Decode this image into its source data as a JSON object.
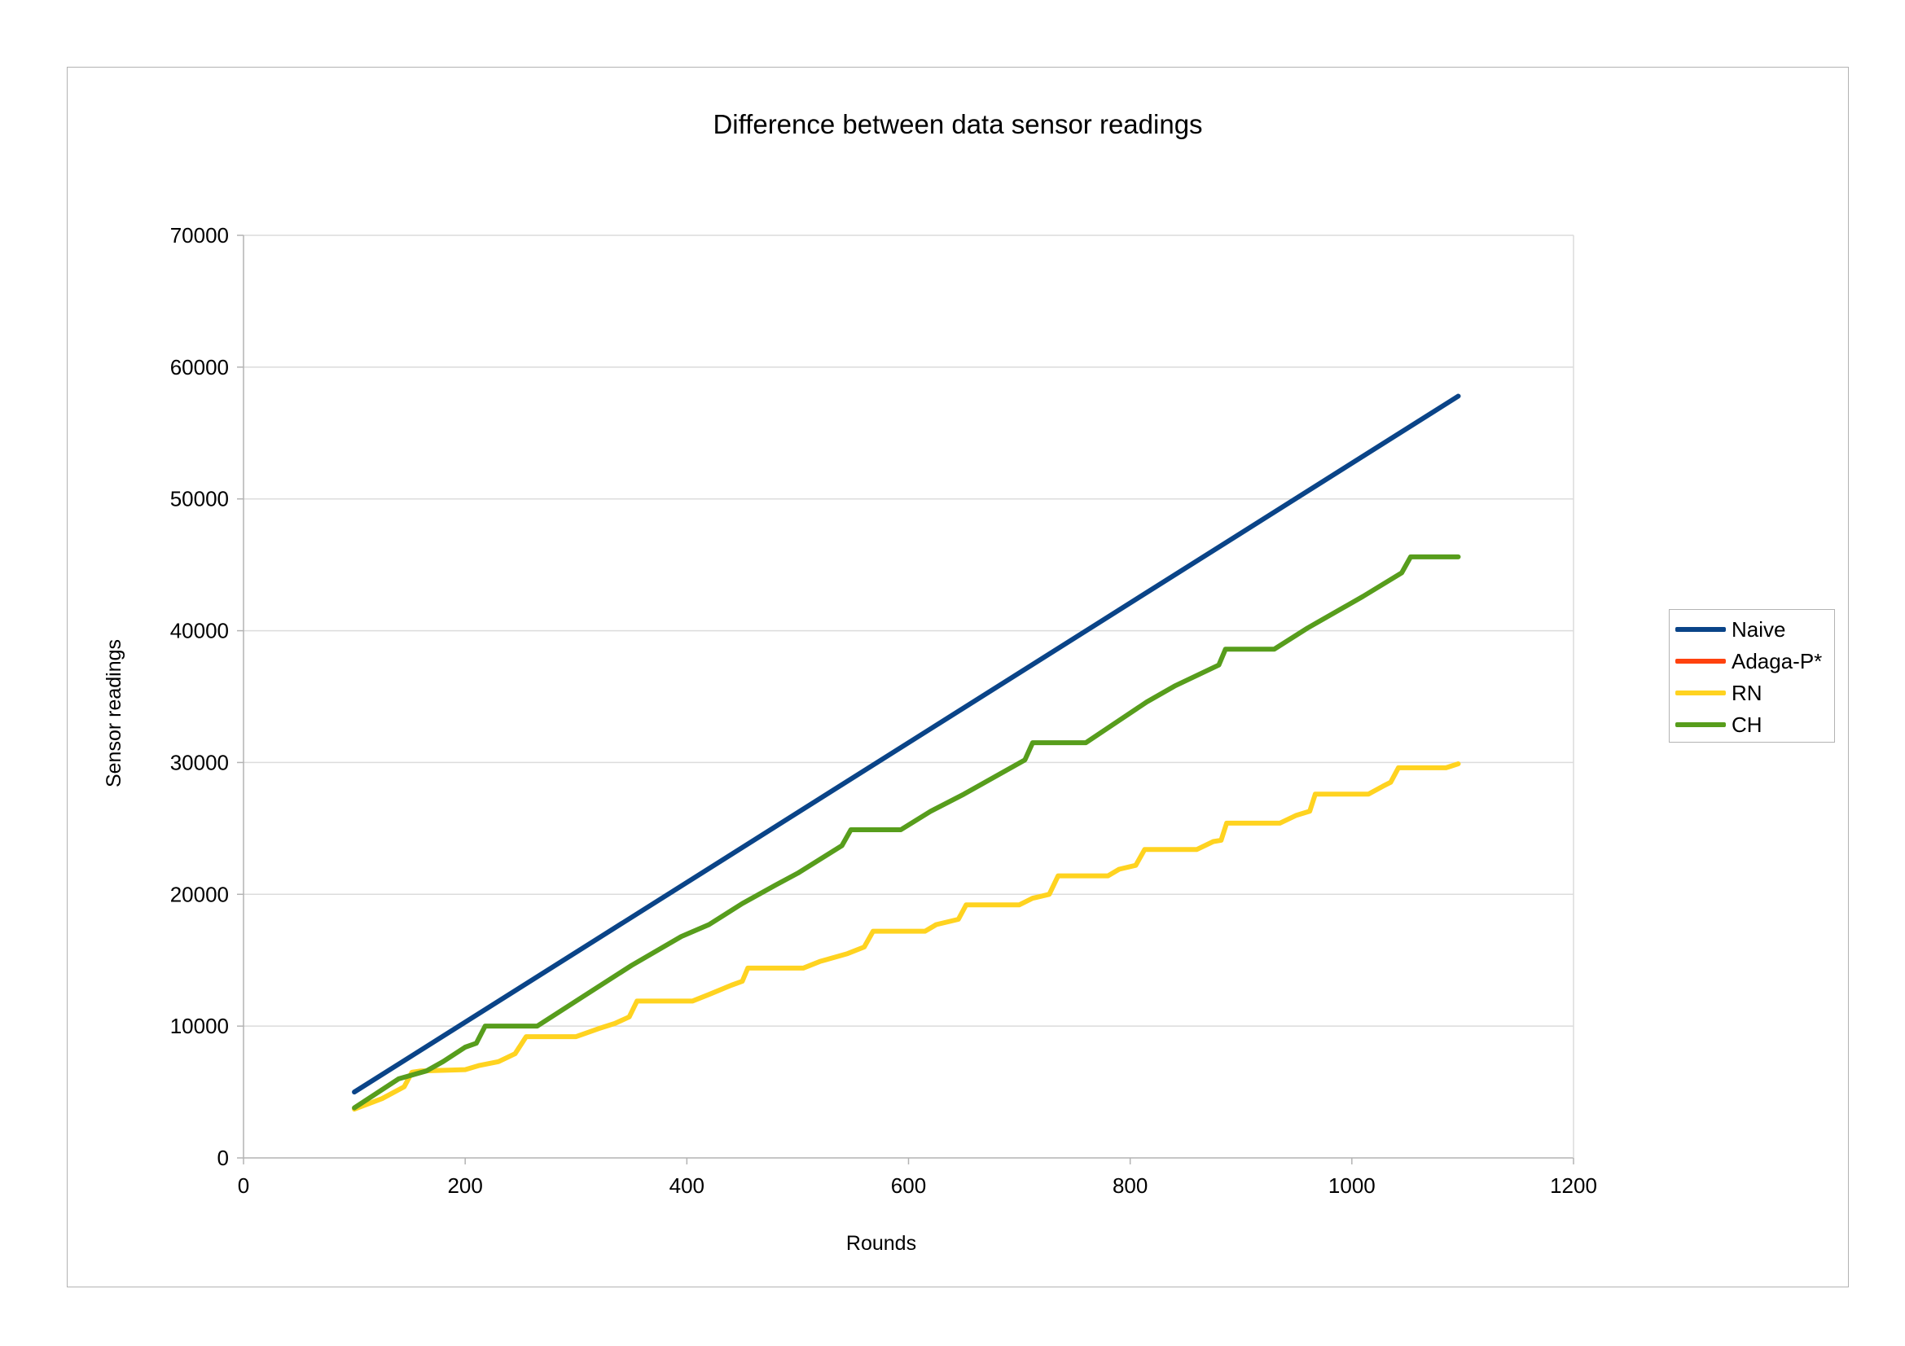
{
  "chart_data": {
    "type": "line",
    "title": "Difference between data sensor readings",
    "xlabel": "Rounds",
    "ylabel": "Sensor readings",
    "xlim": [
      0,
      1200
    ],
    "ylim": [
      0,
      70000
    ],
    "x_ticks": [
      "0",
      "200",
      "400",
      "600",
      "800",
      "1000",
      "1200"
    ],
    "y_ticks": [
      "0",
      "10000",
      "20000",
      "30000",
      "40000",
      "50000",
      "60000",
      "70000"
    ],
    "grid": "horizontal",
    "legend_position": "right",
    "series": [
      {
        "name": "Naive",
        "color": "#0a4488",
        "points": [
          [
            100,
            5000
          ],
          [
            1096,
            57800
          ]
        ]
      },
      {
        "name": "Adaga-P*",
        "color": "#ff420e",
        "points": []
      },
      {
        "name": "RN",
        "color": "#ffd320",
        "points": [
          [
            100,
            3700
          ],
          [
            125,
            4500
          ],
          [
            145,
            5400
          ],
          [
            152,
            6500
          ],
          [
            160,
            6600
          ],
          [
            200,
            6700
          ],
          [
            212,
            7000
          ],
          [
            230,
            7300
          ],
          [
            245,
            7900
          ],
          [
            255,
            9200
          ],
          [
            300,
            9200
          ],
          [
            320,
            9800
          ],
          [
            335,
            10200
          ],
          [
            348,
            10700
          ],
          [
            355,
            11900
          ],
          [
            405,
            11900
          ],
          [
            420,
            12400
          ],
          [
            440,
            13100
          ],
          [
            450,
            13400
          ],
          [
            455,
            14400
          ],
          [
            505,
            14400
          ],
          [
            520,
            14900
          ],
          [
            545,
            15500
          ],
          [
            560,
            16000
          ],
          [
            568,
            17200
          ],
          [
            615,
            17200
          ],
          [
            625,
            17700
          ],
          [
            645,
            18100
          ],
          [
            652,
            19200
          ],
          [
            700,
            19200
          ],
          [
            712,
            19700
          ],
          [
            727,
            20000
          ],
          [
            735,
            21400
          ],
          [
            780,
            21400
          ],
          [
            790,
            21900
          ],
          [
            805,
            22200
          ],
          [
            813,
            23400
          ],
          [
            860,
            23400
          ],
          [
            875,
            24000
          ],
          [
            882,
            24100
          ],
          [
            887,
            25400
          ],
          [
            935,
            25400
          ],
          [
            950,
            26000
          ],
          [
            962,
            26300
          ],
          [
            967,
            27600
          ],
          [
            1015,
            27600
          ],
          [
            1028,
            28200
          ],
          [
            1035,
            28500
          ],
          [
            1042,
            29600
          ],
          [
            1085,
            29600
          ],
          [
            1096,
            29900
          ]
        ]
      },
      {
        "name": "CH",
        "color": "#579d1c",
        "points": [
          [
            100,
            3800
          ],
          [
            140,
            6000
          ],
          [
            165,
            6600
          ],
          [
            180,
            7300
          ],
          [
            200,
            8400
          ],
          [
            210,
            8700
          ],
          [
            218,
            10000
          ],
          [
            265,
            10000
          ],
          [
            300,
            11900
          ],
          [
            350,
            14600
          ],
          [
            395,
            16800
          ],
          [
            420,
            17700
          ],
          [
            450,
            19300
          ],
          [
            480,
            20700
          ],
          [
            500,
            21600
          ],
          [
            540,
            23700
          ],
          [
            548,
            24900
          ],
          [
            593,
            24900
          ],
          [
            620,
            26300
          ],
          [
            650,
            27600
          ],
          [
            705,
            30200
          ],
          [
            712,
            31500
          ],
          [
            760,
            31500
          ],
          [
            815,
            34600
          ],
          [
            840,
            35800
          ],
          [
            880,
            37400
          ],
          [
            886,
            38600
          ],
          [
            930,
            38600
          ],
          [
            960,
            40200
          ],
          [
            1010,
            42600
          ],
          [
            1045,
            44400
          ],
          [
            1053,
            45600
          ],
          [
            1096,
            45600
          ]
        ]
      }
    ]
  }
}
